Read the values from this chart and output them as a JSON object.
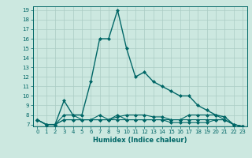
{
  "xlabel": "Humidex (Indice chaleur)",
  "bg_color": "#cce8e0",
  "line_color": "#006666",
  "grid_color": "#aaccc4",
  "xlim": [
    -0.5,
    23.5
  ],
  "ylim": [
    6.8,
    19.4
  ],
  "yticks": [
    7,
    8,
    9,
    10,
    11,
    12,
    13,
    14,
    15,
    16,
    17,
    18,
    19
  ],
  "xticks": [
    0,
    1,
    2,
    3,
    4,
    5,
    6,
    7,
    8,
    9,
    10,
    11,
    12,
    13,
    14,
    15,
    16,
    17,
    18,
    19,
    20,
    21,
    22,
    23
  ],
  "series": [
    [
      7.5,
      7.0,
      7.0,
      9.5,
      8.0,
      8.0,
      11.5,
      16.0,
      16.0,
      19.0,
      15.0,
      12.0,
      12.5,
      11.5,
      11.0,
      10.5,
      10.0,
      10.0,
      9.0,
      8.5,
      8.0,
      7.8,
      7.0,
      6.8
    ],
    [
      7.5,
      7.0,
      7.0,
      8.0,
      8.0,
      7.5,
      7.5,
      8.0,
      7.5,
      8.0,
      7.5,
      7.5,
      7.5,
      7.5,
      7.5,
      7.5,
      7.5,
      8.0,
      8.0,
      8.0,
      8.0,
      7.5,
      7.0,
      6.8
    ],
    [
      7.5,
      7.0,
      7.0,
      7.5,
      7.5,
      7.5,
      7.5,
      7.5,
      7.5,
      7.5,
      7.5,
      7.5,
      7.5,
      7.5,
      7.5,
      7.2,
      7.2,
      7.2,
      7.2,
      7.2,
      7.5,
      7.5,
      7.0,
      6.8
    ],
    [
      7.5,
      7.0,
      7.0,
      7.5,
      7.5,
      7.5,
      7.5,
      7.5,
      7.5,
      7.8,
      8.0,
      8.0,
      8.0,
      7.8,
      7.8,
      7.5,
      7.5,
      7.5,
      7.5,
      7.5,
      7.5,
      7.5,
      7.0,
      6.8
    ]
  ]
}
